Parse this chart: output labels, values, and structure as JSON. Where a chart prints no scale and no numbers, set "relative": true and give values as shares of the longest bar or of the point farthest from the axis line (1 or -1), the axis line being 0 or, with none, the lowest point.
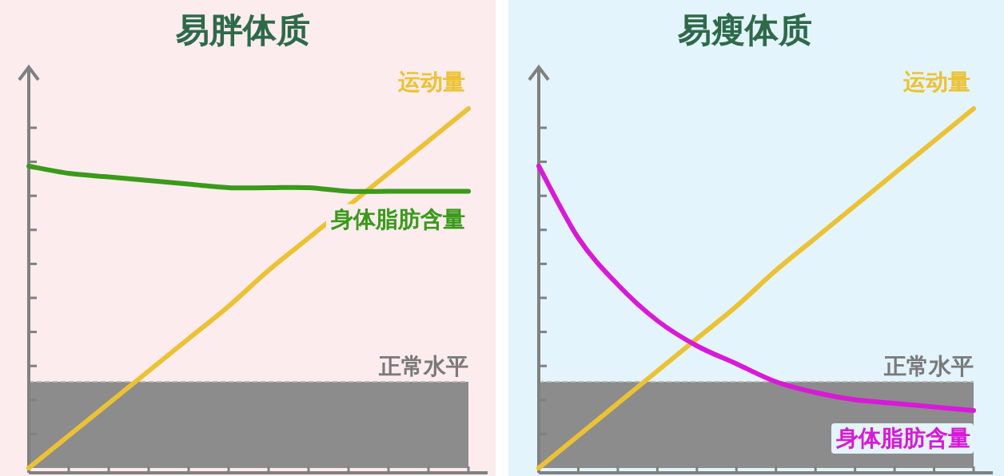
{
  "chart_data": [
    {
      "type": "line",
      "title": "易胖体质",
      "relative": true,
      "categories": [
        null,
        null,
        null,
        null,
        null,
        null,
        null,
        null,
        null,
        null,
        null,
        null
      ],
      "series": [
        {
          "name": "运动量",
          "color": "#ecc235",
          "values": [
            0,
            0.09,
            0.18,
            0.27,
            0.36,
            0.45,
            0.55,
            0.64,
            0.73,
            0.82,
            0.91,
            1
          ]
        },
        {
          "name": "身体脂肪含量",
          "color": "#3a9a1a",
          "values": [
            0.84,
            0.82,
            0.81,
            0.8,
            0.79,
            0.78,
            0.78,
            0.78,
            0.77,
            0.77,
            0.77,
            0.77
          ]
        }
      ],
      "ref_lines": [
        {
          "axis": "y",
          "value": 0.24,
          "color": "#bbbbbb",
          "line_style": "dashed"
        }
      ],
      "bands": [
        {
          "axis": "y",
          "from": 0,
          "to": 0.24,
          "label": "正常水平",
          "color": "#8c8c8c"
        }
      ]
    },
    {
      "type": "line",
      "title": "易瘦体质",
      "relative": true,
      "categories": [
        null,
        null,
        null,
        null,
        null,
        null,
        null,
        null,
        null,
        null,
        null,
        null
      ],
      "series": [
        {
          "name": "运动量",
          "color": "#ecc235",
          "values": [
            0,
            0.09,
            0.18,
            0.27,
            0.36,
            0.45,
            0.55,
            0.64,
            0.73,
            0.82,
            0.91,
            1
          ]
        },
        {
          "name": "身体脂肪含量",
          "color": "#d81ad8",
          "values": [
            0.84,
            0.64,
            0.51,
            0.41,
            0.34,
            0.29,
            0.24,
            0.21,
            0.19,
            0.18,
            0.17,
            0.16
          ]
        }
      ],
      "ref_lines": [
        {
          "axis": "y",
          "value": 0.24,
          "color": "#bbbbbb",
          "line_style": "dashed"
        }
      ],
      "bands": [
        {
          "axis": "y",
          "from": 0,
          "to": 0.24,
          "label": "正常水平",
          "color": "#8c8c8c"
        }
      ]
    }
  ]
}
